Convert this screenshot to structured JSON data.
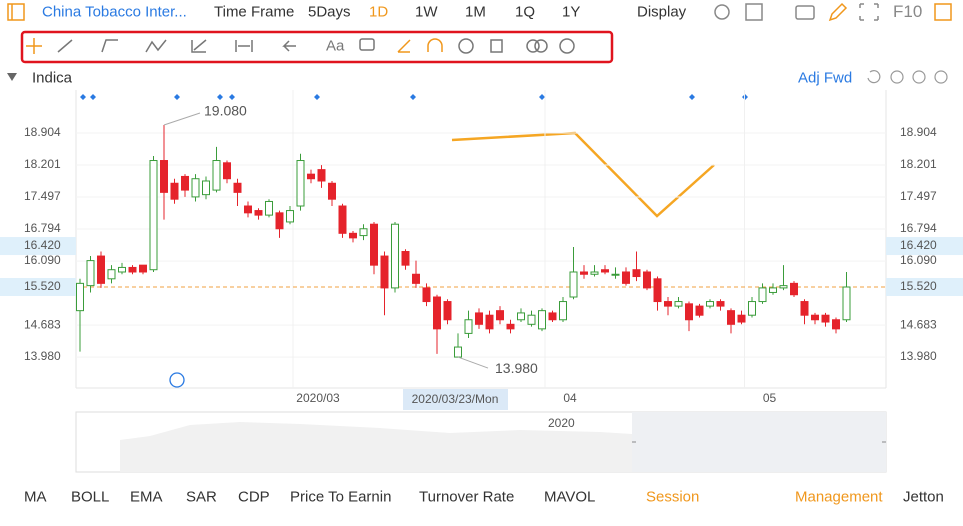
{
  "header": {
    "stock": "China Tobacco Inter...",
    "time_frame_label": "Time Frame",
    "periods": [
      "5Days",
      "1D",
      "1W",
      "1M",
      "1Q",
      "1Y"
    ],
    "display": "Display",
    "f10": "F10"
  },
  "toolbar": {
    "text_tool": "Aa"
  },
  "chart_data": {
    "type": "candlestick",
    "indicator_label": "Indica",
    "adjust": "Adj Fwd",
    "categories": [
      null,
      null,
      null,
      null,
      null,
      null,
      null,
      null,
      null,
      null,
      null,
      null,
      null,
      null,
      null,
      null,
      null,
      null,
      null,
      null,
      "2020/03",
      null,
      null,
      null,
      null,
      null,
      null,
      null,
      null,
      null,
      null,
      null,
      null,
      null,
      null,
      null,
      null,
      null,
      null,
      null,
      null,
      null,
      null,
      null,
      "04",
      null,
      null,
      null,
      null,
      null,
      null,
      null,
      null,
      null,
      null,
      null,
      null,
      null,
      null,
      null,
      null,
      null,
      null,
      "05",
      null,
      null,
      null,
      null,
      null,
      null,
      null,
      null,
      null,
      null
    ],
    "open": [
      15.0,
      15.55,
      16.2,
      15.7,
      15.85,
      15.95,
      16.0,
      15.9,
      18.3,
      17.8,
      17.95,
      17.5,
      17.55,
      17.65,
      18.25,
      17.8,
      17.3,
      17.2,
      17.1,
      17.15,
      16.95,
      17.3,
      18.0,
      18.1,
      17.8,
      17.3,
      16.7,
      16.65,
      16.9,
      16.2,
      15.5,
      16.3,
      15.8,
      15.5,
      15.3,
      15.2,
      13.98,
      14.5,
      14.95,
      14.9,
      15.0,
      14.7,
      14.8,
      14.7,
      14.6,
      14.95,
      14.8,
      15.3,
      15.85,
      15.8,
      15.9,
      15.8,
      15.85,
      15.9,
      15.85,
      15.7,
      15.2,
      15.1,
      15.15,
      15.1,
      15.1,
      15.2,
      15.0,
      14.9,
      14.9,
      15.2,
      15.4,
      15.5,
      15.6,
      15.2,
      14.9,
      14.9,
      14.8,
      14.8
    ],
    "high": [
      15.7,
      16.2,
      16.3,
      16.0,
      16.05,
      16.0,
      16.0,
      18.4,
      19.08,
      17.9,
      18.0,
      18.0,
      17.95,
      18.6,
      18.3,
      17.9,
      17.4,
      17.25,
      17.45,
      17.2,
      17.3,
      18.45,
      18.1,
      18.2,
      17.85,
      17.35,
      16.75,
      16.9,
      16.95,
      16.3,
      16.95,
      16.35,
      16.1,
      15.6,
      15.35,
      15.25,
      14.5,
      15.0,
      15.05,
      15.0,
      15.1,
      14.8,
      15.05,
      15.0,
      15.05,
      15.0,
      15.3,
      16.4,
      16.0,
      16.0,
      16.0,
      15.95,
      15.95,
      16.3,
      15.9,
      15.75,
      15.3,
      15.3,
      15.2,
      15.15,
      15.25,
      15.25,
      15.05,
      15.0,
      15.3,
      15.6,
      15.6,
      16.0,
      15.65,
      15.25,
      14.95,
      14.95,
      14.85,
      15.85
    ],
    "low": [
      14.1,
      15.4,
      15.5,
      15.6,
      15.8,
      15.8,
      15.8,
      15.85,
      17.0,
      17.35,
      17.5,
      17.4,
      17.45,
      17.6,
      17.8,
      17.3,
      17.05,
      17.0,
      17.05,
      16.6,
      16.9,
      17.2,
      17.8,
      17.7,
      17.3,
      16.6,
      16.5,
      16.55,
      15.8,
      14.9,
      15.4,
      15.9,
      15.5,
      15.1,
      14.05,
      14.7,
      13.98,
      14.4,
      14.6,
      14.5,
      14.7,
      14.5,
      14.75,
      14.65,
      14.55,
      14.75,
      14.75,
      15.25,
      15.7,
      15.75,
      15.8,
      15.7,
      15.55,
      15.65,
      15.45,
      15.0,
      14.9,
      15.05,
      14.55,
      14.85,
      15.05,
      15.0,
      14.5,
      14.7,
      14.85,
      15.15,
      15.35,
      15.45,
      15.3,
      14.7,
      14.7,
      14.65,
      14.5,
      14.75
    ],
    "close": [
      15.6,
      16.1,
      15.6,
      15.9,
      15.95,
      15.85,
      15.85,
      18.3,
      17.6,
      17.45,
      17.65,
      17.9,
      17.85,
      18.3,
      17.9,
      17.6,
      17.15,
      17.1,
      17.4,
      16.8,
      17.2,
      18.3,
      17.9,
      17.85,
      17.45,
      16.7,
      16.6,
      16.8,
      16.0,
      15.5,
      16.9,
      16.0,
      15.6,
      15.2,
      14.6,
      14.8,
      14.2,
      14.8,
      14.7,
      14.6,
      14.8,
      14.6,
      14.95,
      14.9,
      15.0,
      14.8,
      15.2,
      15.85,
      15.8,
      15.85,
      15.85,
      15.8,
      15.6,
      15.75,
      15.5,
      15.2,
      15.1,
      15.2,
      14.8,
      14.9,
      15.2,
      15.1,
      14.7,
      14.75,
      15.2,
      15.5,
      15.5,
      15.55,
      15.35,
      14.9,
      14.8,
      14.75,
      14.6,
      15.52
    ],
    "up_color": "#3a9c3a",
    "down_color": "#e5232b",
    "ylim": [
      13.3,
      19.85
    ],
    "yticks": [
      18.904,
      18.201,
      17.497,
      16.794,
      {
        "value": 16.09,
        "label": "16.090"
      },
      14.683,
      {
        "value": 13.98,
        "label": "13.980"
      }
    ],
    "grid": true,
    "last_price": {
      "value": 15.52,
      "label": "15.520"
    },
    "crosshair": {
      "date": "2020/03/23/Mon",
      "price": {
        "value": 16.42,
        "label": "16.420"
      }
    },
    "max_label": {
      "value": 19.08,
      "label": "19.080"
    },
    "min_label": {
      "value": 13.98,
      "label": "13.980"
    },
    "navigator_label": "2020"
  },
  "bottom_tabs": [
    "MA",
    "BOLL",
    "EMA",
    "SAR",
    "CDP",
    "Price To Earnin",
    "Turnover Rate",
    "MAVOL",
    "Session",
    "Management",
    "Jetton"
  ]
}
